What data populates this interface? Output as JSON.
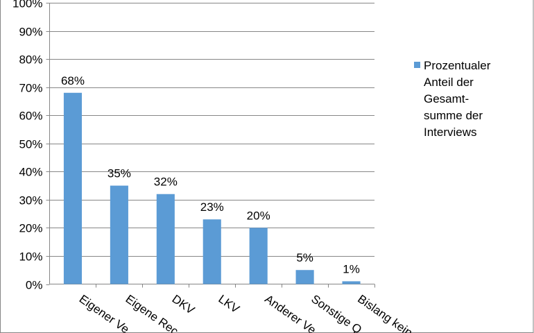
{
  "chart_data": {
    "type": "bar",
    "categories": [
      "Eigener Ve",
      "Eigene Rec",
      "DKV",
      "LKV",
      "Anderer Ve",
      "Sonstige Q",
      "Bislang kein"
    ],
    "series": [
      {
        "name": "Prozentualer Anteil der Gesamt- summe der Interviews",
        "values": [
          68,
          35,
          32,
          23,
          20,
          5,
          1
        ],
        "color": "#5B9BD5"
      }
    ],
    "data_labels": [
      "68%",
      "35%",
      "32%",
      "23%",
      "20%",
      "5%",
      "1%"
    ],
    "y_ticks": [
      "0%",
      "10%",
      "20%",
      "30%",
      "40%",
      "50%",
      "60%",
      "70%",
      "80%",
      "90%",
      "100%"
    ],
    "ylim": [
      0,
      100
    ],
    "grid": true,
    "legend_position": "right",
    "legend_lines": [
      "Prozentualer",
      "Anteil der",
      "Gesamt-",
      "summe der",
      "Interviews"
    ],
    "colors": {
      "bar": "#5B9BD5",
      "grid": "#868686",
      "axis": "#868686",
      "border": "#868686"
    }
  }
}
